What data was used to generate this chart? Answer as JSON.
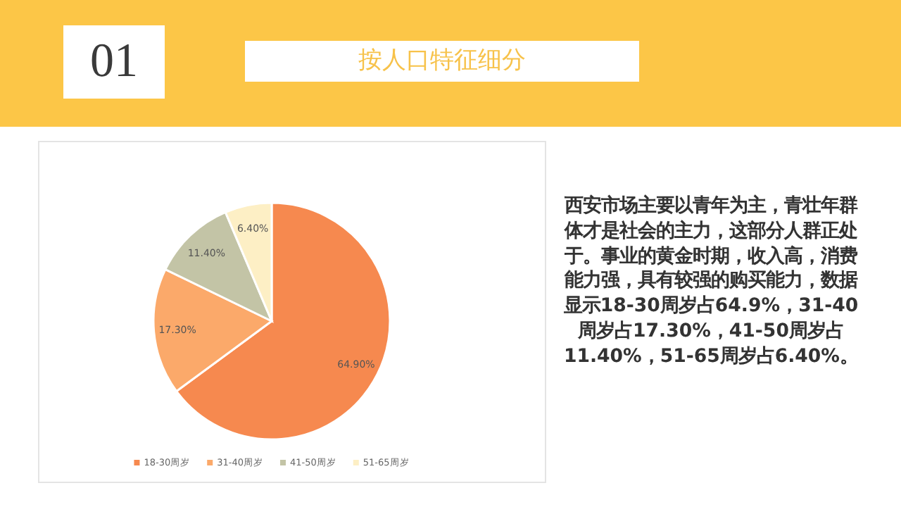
{
  "chart_data": {
    "type": "pie",
    "title": "按人口特征细分",
    "subtitle": "01",
    "categories": [
      "18-30周岁",
      "31-40周岁",
      "41-50周岁",
      "51-65周岁"
    ],
    "values": [
      64.9,
      17.3,
      11.4,
      6.4
    ],
    "value_labels": [
      "64.90%",
      "17.30%",
      "11.40%",
      "6.40%"
    ],
    "colors": [
      "#f6894f",
      "#fba96a",
      "#c3c4a6",
      "#fdefc5"
    ],
    "legend": "bottom",
    "annotations": [
      "西安市场主要以青年为主，青壮年群体才是社会的主力，这部分人群正处于。事业的黄金时期，收入高，消费能力强，具有较强的购买能力，数据显示18-30周岁占64.9%，31-40周岁占17.30%，41-50周岁占11.40%，51-65周岁占6.40%。"
    ]
  }
}
